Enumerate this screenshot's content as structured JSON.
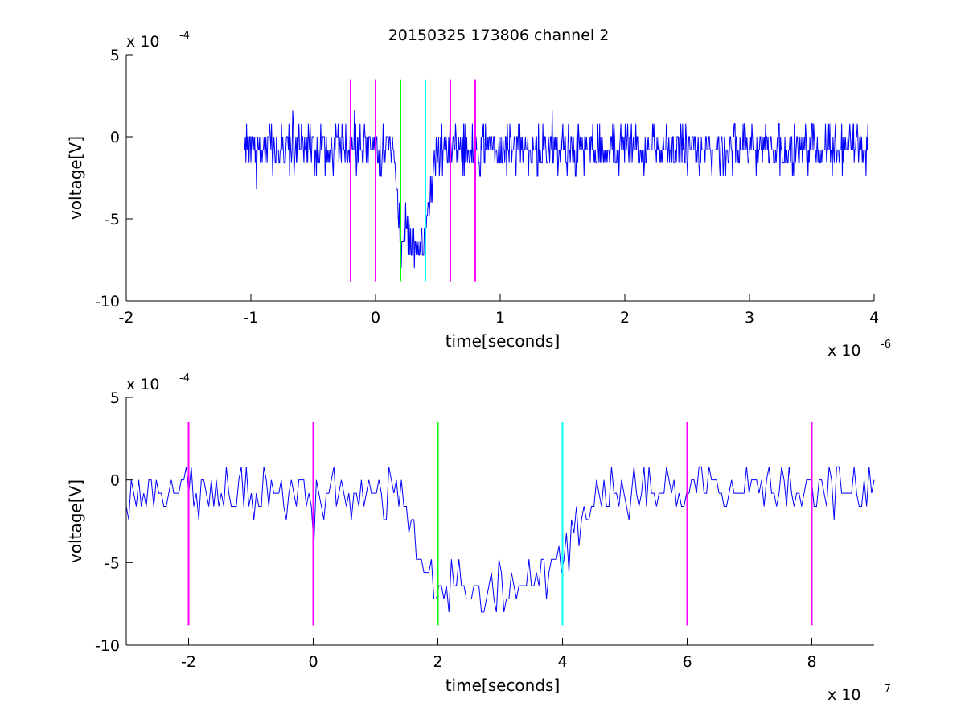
{
  "figure": {
    "title": "20150325 173806 channel 2"
  },
  "chart_data": [
    {
      "type": "line",
      "title": "20150325 173806 channel 2",
      "xlabel": "time[seconds]",
      "ylabel": "voltage[V]",
      "x_exponent": "x 10",
      "x_exponent_power": "-6",
      "y_exponent": "x 10",
      "y_exponent_power": "-4",
      "xlim": [
        -2,
        4
      ],
      "ylim": [
        -10,
        5
      ],
      "xticks": [
        -2,
        -1,
        0,
        1,
        2,
        3,
        4
      ],
      "xtick_labels": [
        "-2",
        "-1",
        "0",
        "1",
        "2",
        "3",
        "4"
      ],
      "yticks": [
        -10,
        -5,
        0,
        5
      ],
      "ytick_labels": [
        "-10",
        "-5",
        "0",
        "5"
      ],
      "grid": false,
      "series": [
        {
          "color": "#0000ff",
          "noise_seed": 7,
          "x_start": -1.05,
          "x_end": 3.95,
          "n_points": 1000,
          "baseline": -0.7,
          "levels": [
            -3.2,
            -2.4,
            -1.6,
            -0.8,
            0.0,
            0.8
          ],
          "pulse": {
            "start": 0.15,
            "end": 0.48,
            "depth": -5.8,
            "rise": 0.1
          }
        }
      ],
      "vlines": [
        {
          "x": -0.2,
          "color": "#ff00ff",
          "ymin": -8.8,
          "ymax": 3.5
        },
        {
          "x": 0.0,
          "color": "#ff00ff",
          "ymin": -8.8,
          "ymax": 3.5
        },
        {
          "x": 0.2,
          "color": "#00ff00",
          "ymin": -8.8,
          "ymax": 3.5
        },
        {
          "x": 0.4,
          "color": "#00ffff",
          "ymin": -8.8,
          "ymax": 3.5
        },
        {
          "x": 0.6,
          "color": "#ff00ff",
          "ymin": -8.8,
          "ymax": 3.5
        },
        {
          "x": 0.8,
          "color": "#ff00ff",
          "ymin": -8.8,
          "ymax": 3.5
        }
      ]
    },
    {
      "type": "line",
      "title": "",
      "xlabel": "time[seconds]",
      "ylabel": "voltage[V]",
      "x_exponent": "x 10",
      "x_exponent_power": "-7",
      "y_exponent": "x 10",
      "y_exponent_power": "-4",
      "xlim": [
        -3,
        9
      ],
      "ylim": [
        -10,
        5
      ],
      "xticks": [
        -2,
        0,
        2,
        4,
        6,
        8
      ],
      "xtick_labels": [
        "-2",
        "0",
        "2",
        "4",
        "6",
        "8"
      ],
      "yticks": [
        -10,
        -5,
        0,
        5
      ],
      "ytick_labels": [
        "-10",
        "-5",
        "0",
        "5"
      ],
      "grid": false,
      "series": [
        {
          "color": "#0000ff",
          "noise_seed": 13,
          "x_start": -3,
          "x_end": 9,
          "n_points": 300,
          "baseline": -0.7,
          "levels": [
            -2.4,
            -1.6,
            -0.8,
            0.0,
            0.8,
            1.6
          ],
          "pulse": {
            "start": 1.4,
            "end": 4.6,
            "depth": -5.9,
            "rise": 1.0
          }
        }
      ],
      "vlines": [
        {
          "x": -2,
          "color": "#ff00ff",
          "ymin": -8.8,
          "ymax": 3.5
        },
        {
          "x": 0,
          "color": "#ff00ff",
          "ymin": -8.8,
          "ymax": 3.5
        },
        {
          "x": 2,
          "color": "#00ff00",
          "ymin": -8.8,
          "ymax": 3.5
        },
        {
          "x": 4,
          "color": "#00ffff",
          "ymin": -8.8,
          "ymax": 3.5
        },
        {
          "x": 6,
          "color": "#ff00ff",
          "ymin": -8.8,
          "ymax": 3.5
        },
        {
          "x": 8,
          "color": "#ff00ff",
          "ymin": -8.8,
          "ymax": 3.5
        }
      ]
    }
  ]
}
